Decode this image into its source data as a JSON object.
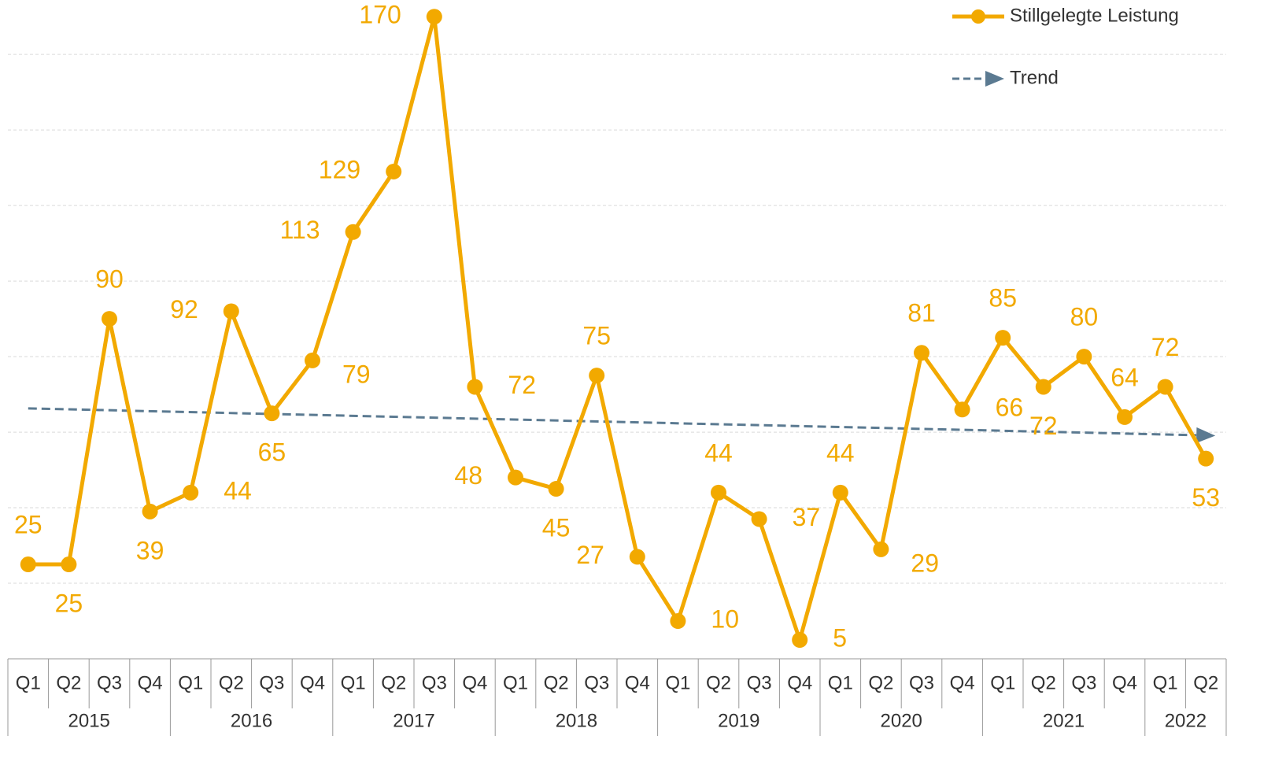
{
  "chart_data": {
    "type": "line",
    "categories": [
      "Q1",
      "Q2",
      "Q3",
      "Q4",
      "Q1",
      "Q2",
      "Q3",
      "Q4",
      "Q1",
      "Q2",
      "Q3",
      "Q4",
      "Q1",
      "Q2",
      "Q3",
      "Q4",
      "Q1",
      "Q2",
      "Q3",
      "Q4",
      "Q1",
      "Q2",
      "Q3",
      "Q4",
      "Q1",
      "Q2",
      "Q3",
      "Q4",
      "Q1",
      "Q2"
    ],
    "groups": [
      "2015",
      "2016",
      "2017",
      "2018",
      "2019",
      "2020",
      "2021",
      "2022"
    ],
    "series": [
      {
        "name": "Stillgelegte Leistung",
        "color": "#f2a900",
        "values": [
          25,
          25,
          90,
          39,
          44,
          92,
          65,
          79,
          113,
          129,
          170,
          72,
          48,
          45,
          75,
          27,
          10,
          44,
          37,
          5,
          44,
          29,
          81,
          66,
          85,
          72,
          80,
          64,
          72,
          53
        ]
      }
    ],
    "trend": {
      "name": "Trend",
      "color": "#5b7a91",
      "values": [
        66.3,
        59.2
      ]
    },
    "ylim": [
      0,
      174
    ],
    "yticks": [
      20,
      40,
      60,
      80,
      100,
      120,
      140,
      160
    ],
    "grid": true,
    "legend": "top-right"
  }
}
